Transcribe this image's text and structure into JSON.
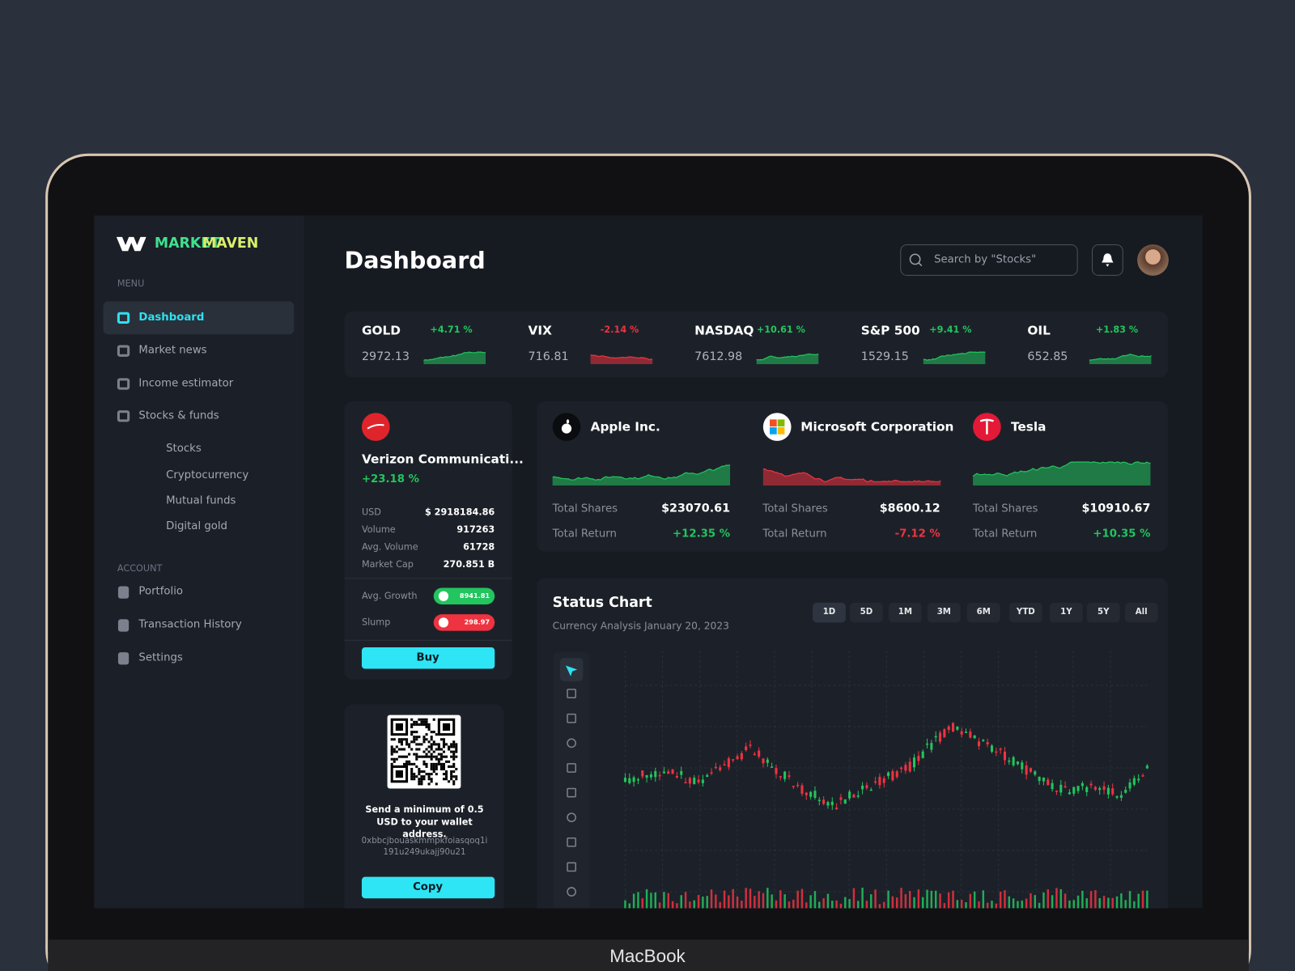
{
  "brand": {
    "first": "MARKET",
    "second": "MAVEN"
  },
  "sidebar": {
    "menu_label": "MENU",
    "menu": [
      "Dashboard",
      "Market news",
      "Income estimator",
      "Stocks & funds"
    ],
    "submenu": [
      "Stocks",
      "Cryptocurrency",
      "Mutual funds",
      "Digital gold"
    ],
    "account_label": "ACCOUNT",
    "account": [
      "Portfolio",
      "Transaction History",
      "Settings"
    ]
  },
  "header": {
    "title": "Dashboard",
    "search_placeholder": "Search by \"Stocks\""
  },
  "tickers": [
    {
      "name": "GOLD",
      "change": "+4.71 %",
      "value": "2972.13",
      "color": "#22c55e"
    },
    {
      "name": "VIX",
      "change": "-2.14 %",
      "value": "716.81",
      "color": "#ef3340"
    },
    {
      "name": "NASDAQ",
      "change": "+10.61 %",
      "value": "7612.98",
      "color": "#22c55e"
    },
    {
      "name": "S&P 500",
      "change": "+9.41 %",
      "value": "1529.15",
      "color": "#22c55e"
    },
    {
      "name": "OIL",
      "change": "+1.83 %",
      "value": "652.85",
      "color": "#22c55e"
    }
  ],
  "featured": {
    "name": "Verizon Communicati...",
    "change": "+23.18 %",
    "stats": [
      {
        "label": "USD",
        "value": "$ 2918184.86"
      },
      {
        "label": "Volume",
        "value": "917263"
      },
      {
        "label": "Avg. Volume",
        "value": "61728"
      },
      {
        "label": "Market Cap",
        "value": "270.851 B"
      }
    ],
    "avg_growth": {
      "label": "Avg. Growth",
      "value": "8941.81"
    },
    "slump": {
      "label": "Slump",
      "value": "298.97"
    },
    "buy": "Buy"
  },
  "wallet": {
    "message": "Send a minimum of 0.5 USD to your wallet address.",
    "address": "0xbbcjbouaskmmpkfoiasqoq1i 191u249ukajj90u21",
    "copy": "Copy"
  },
  "companies": [
    {
      "name": "Apple Inc.",
      "shares_label": "Total Shares",
      "shares": "$23070.61",
      "return_label": "Total Return",
      "return": "+12.35 %",
      "color": "#22c55e"
    },
    {
      "name": "Microsoft Corporation",
      "shares_label": "Total Shares",
      "shares": "$8600.12",
      "return_label": "Total Return",
      "return": "-7.12 %",
      "color": "#ef3340"
    },
    {
      "name": "Tesla",
      "shares_label": "Total Shares",
      "shares": "$10910.67",
      "return_label": "Total Return",
      "return": "+10.35 %",
      "color": "#22c55e"
    }
  ],
  "status_chart": {
    "title": "Status Chart",
    "subtitle": "Currency Analysis January 20, 2023",
    "ranges": [
      "1D",
      "5D",
      "1M",
      "3M",
      "6M",
      "YTD",
      "1Y",
      "5Y",
      "All"
    ]
  },
  "device_label": "MacBook"
}
